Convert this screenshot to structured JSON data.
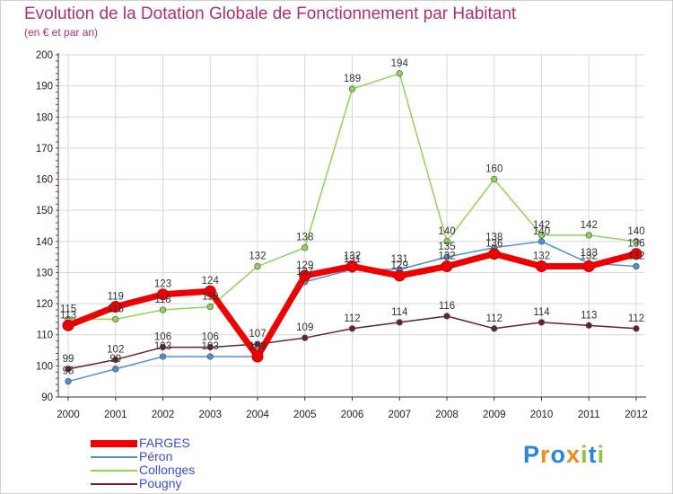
{
  "chart_data": {
    "type": "line",
    "title": "Evolution de la Dotation Globale de Fonctionnement par Habitant",
    "subtitle": "(en € et par an)",
    "xlabel": "",
    "ylabel": "",
    "x": [
      "2000",
      "2001",
      "2002",
      "2003",
      "2004",
      "2005",
      "2006",
      "2007",
      "2008",
      "2009",
      "2010",
      "2011",
      "2012"
    ],
    "ylim": [
      90,
      200
    ],
    "yticks": [
      90,
      100,
      110,
      120,
      130,
      140,
      150,
      160,
      170,
      180,
      190,
      200
    ],
    "grid": true,
    "legend_position": "bottom-left",
    "series": [
      {
        "name": "FARGES",
        "color": "#ee0000",
        "values": [
          113,
          119,
          123,
          124,
          103,
          129,
          132,
          129,
          132,
          136,
          132,
          132,
          136
        ]
      },
      {
        "name": "Péron",
        "color": "#4f8fd0",
        "values": [
          95,
          99,
          103,
          103,
          103,
          127,
          131,
          131,
          135,
          138,
          140,
          133,
          132
        ]
      },
      {
        "name": "Collonges",
        "color": "#8fd457",
        "values": [
          115,
          115,
          118,
          119,
          132,
          138,
          189,
          194,
          140,
          160,
          142,
          142,
          140
        ]
      },
      {
        "name": "Pougny",
        "color": "#6b1f26",
        "values": [
          99,
          102,
          106,
          106,
          107,
          109,
          112,
          114,
          116,
          112,
          114,
          113,
          112
        ]
      }
    ]
  },
  "logo": {
    "letters": [
      "P",
      "r",
      "o",
      "x",
      "i",
      "t",
      "i"
    ],
    "colors": [
      "#2a86d8",
      "#f08a1c",
      "#2a86d8",
      "#f08a1c",
      "#8cc63f",
      "#2a86d8",
      "#8cc63f"
    ]
  }
}
